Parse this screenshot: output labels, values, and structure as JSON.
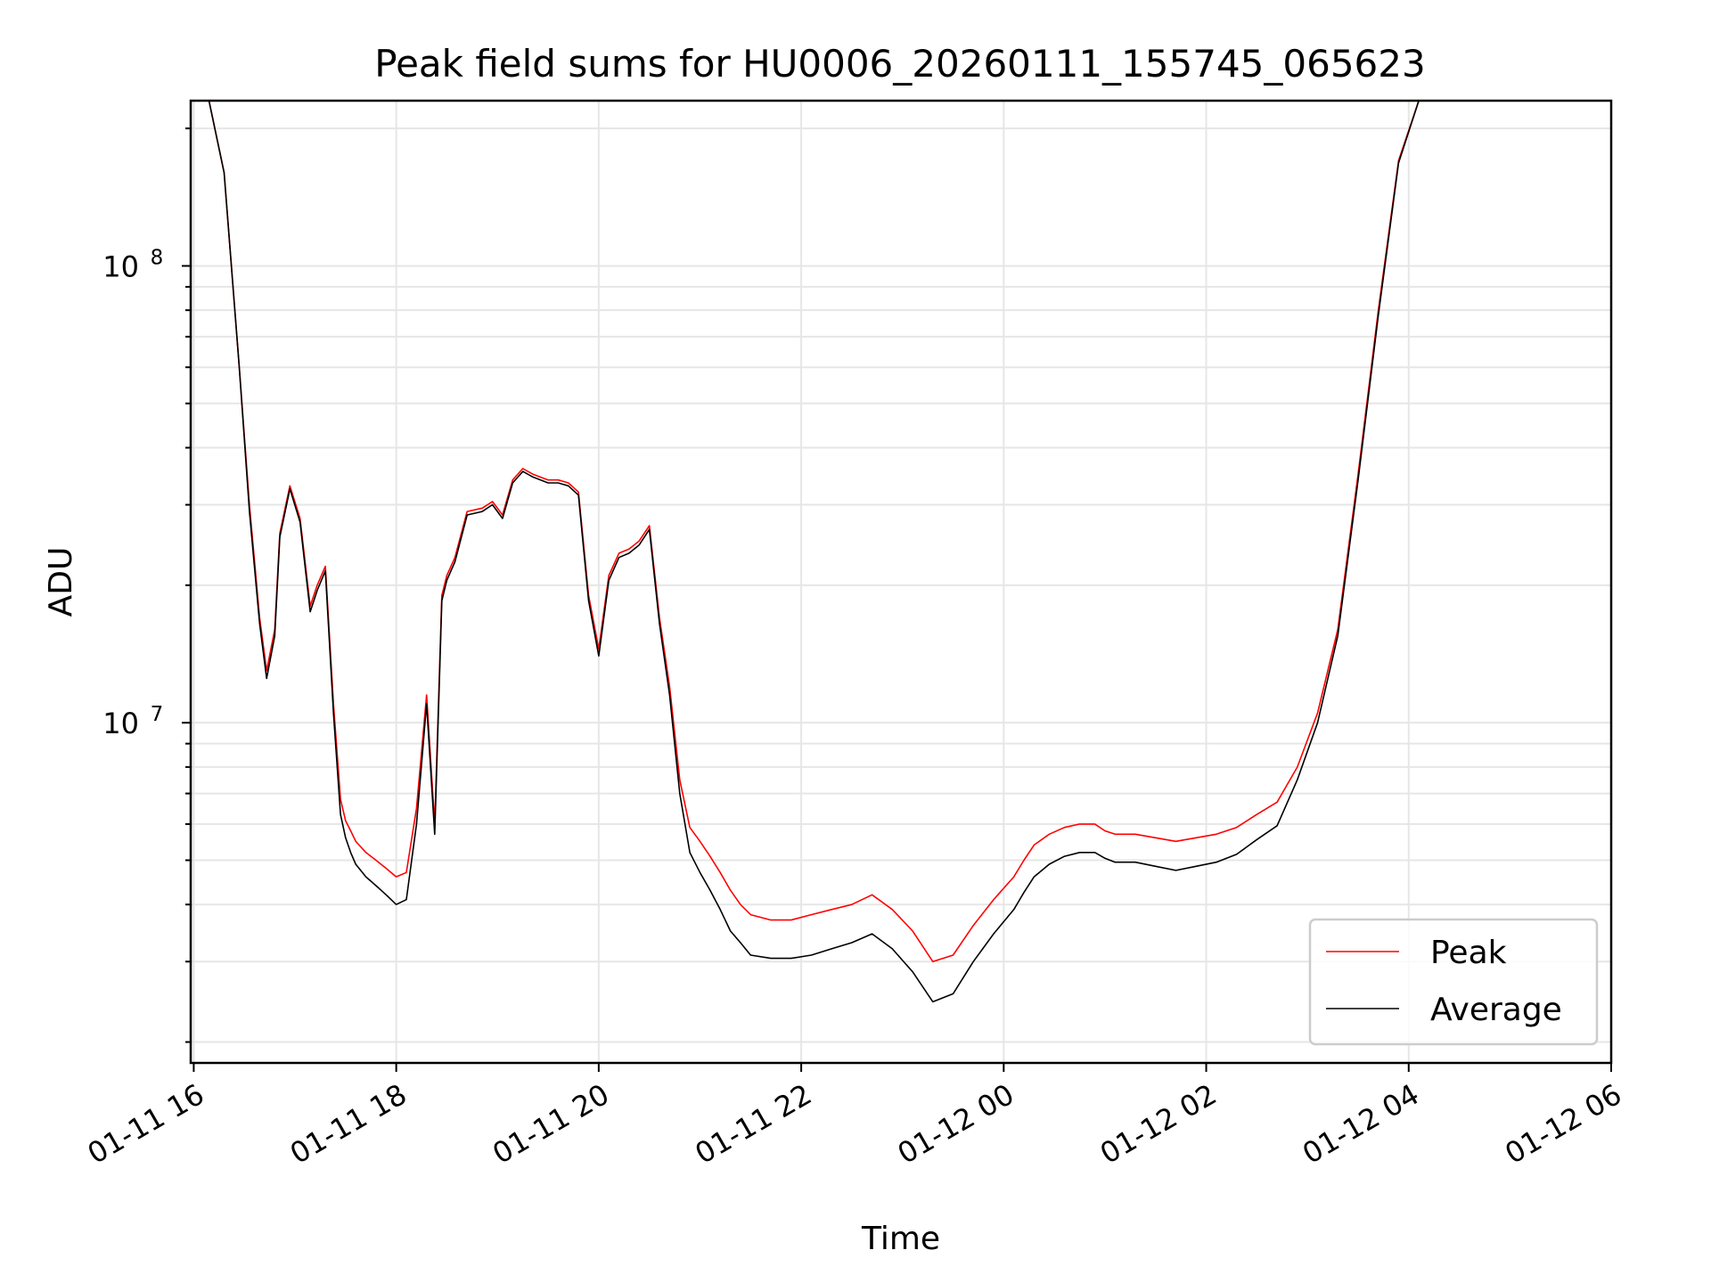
{
  "chart_data": {
    "type": "line",
    "title": "Peak field sums for HU0006_20260111_155745_065623",
    "xlabel": "Time",
    "ylabel": "ADU",
    "yscale": "log",
    "xlim": [
      15.97,
      30.0
    ],
    "ylim": [
      1800000,
      230000000
    ],
    "grid": true,
    "legend_position": "lower-right",
    "x_ticks": [
      {
        "value": 16,
        "label": "01-11 16"
      },
      {
        "value": 18,
        "label": "01-11 18"
      },
      {
        "value": 20,
        "label": "01-11 20"
      },
      {
        "value": 22,
        "label": "01-11 22"
      },
      {
        "value": 24,
        "label": "01-12 00"
      },
      {
        "value": 26,
        "label": "01-12 02"
      },
      {
        "value": 28,
        "label": "01-12 04"
      },
      {
        "value": 30,
        "label": "01-12 06"
      }
    ],
    "y_ticks": [
      {
        "value": 10000000,
        "base": "10",
        "exp": "7"
      },
      {
        "value": 100000000,
        "base": "10",
        "exp": "8"
      }
    ],
    "series": [
      {
        "name": "Peak",
        "color": "#ff0000",
        "x": [
          16.15,
          16.3,
          16.45,
          16.55,
          16.65,
          16.72,
          16.8,
          16.85,
          16.95,
          17.05,
          17.15,
          17.22,
          17.3,
          17.38,
          17.45,
          17.5,
          17.55,
          17.6,
          17.7,
          17.8,
          17.9,
          18.0,
          18.1,
          18.2,
          18.3,
          18.38,
          18.45,
          18.5,
          18.58,
          18.7,
          18.85,
          18.95,
          19.05,
          19.15,
          19.25,
          19.35,
          19.5,
          19.6,
          19.7,
          19.8,
          19.9,
          20.0,
          20.1,
          20.2,
          20.3,
          20.4,
          20.5,
          20.6,
          20.7,
          20.8,
          20.9,
          21.0,
          21.1,
          21.2,
          21.3,
          21.4,
          21.5,
          21.7,
          21.9,
          22.1,
          22.3,
          22.5,
          22.7,
          22.9,
          23.1,
          23.3,
          23.5,
          23.7,
          23.9,
          24.1,
          24.2,
          24.3,
          24.45,
          24.6,
          24.75,
          24.9,
          25.0,
          25.1,
          25.3,
          25.5,
          25.7,
          25.9,
          26.1,
          26.3,
          26.5,
          26.7,
          26.9,
          27.1,
          27.3,
          27.5,
          27.7,
          27.9,
          28.1,
          28.3,
          28.5,
          28.7,
          28.9,
          29.0,
          29.1,
          29.2,
          29.3,
          29.4,
          29.5,
          29.6,
          29.7,
          29.83
        ],
        "y": [
          230000000,
          160000000,
          60000000,
          30000000,
          17000000,
          13000000,
          16000000,
          26000000,
          33000000,
          28000000,
          18000000,
          20000000,
          22000000,
          11000000,
          6800000,
          6100000,
          5800000,
          5500000,
          5200000,
          5000000,
          4800000,
          4600000,
          4700000,
          6500000,
          11500000,
          6000000,
          19000000,
          21000000,
          23000000,
          29000000,
          29500000,
          30500000,
          28500000,
          34000000,
          36000000,
          35000000,
          34000000,
          34000000,
          33500000,
          32000000,
          19000000,
          14500000,
          21000000,
          23500000,
          24000000,
          25000000,
          27000000,
          17000000,
          12000000,
          7500000,
          5900000,
          5500000,
          5100000,
          4700000,
          4300000,
          4000000,
          3800000,
          3700000,
          3700000,
          3800000,
          3900000,
          4000000,
          4200000,
          3900000,
          3500000,
          3000000,
          3100000,
          3600000,
          4100000,
          4600000,
          5000000,
          5400000,
          5700000,
          5900000,
          6000000,
          6000000,
          5800000,
          5700000,
          5700000,
          5600000,
          5500000,
          5600000,
          5700000,
          5900000,
          6300000,
          6700000,
          8000000,
          10500000,
          16000000,
          35000000,
          80000000,
          170000000,
          230000000,
          230000000,
          230000000,
          230000000,
          230000000,
          230000000,
          230000000,
          230000000,
          230000000,
          230000000,
          230000000,
          230000000,
          230000000,
          230000000
        ]
      },
      {
        "name": "Average",
        "color": "#000000",
        "x": [
          16.15,
          16.3,
          16.45,
          16.55,
          16.65,
          16.72,
          16.8,
          16.85,
          16.95,
          17.05,
          17.15,
          17.22,
          17.3,
          17.38,
          17.45,
          17.5,
          17.55,
          17.6,
          17.7,
          17.8,
          17.9,
          18.0,
          18.1,
          18.2,
          18.3,
          18.38,
          18.45,
          18.5,
          18.58,
          18.7,
          18.85,
          18.95,
          19.05,
          19.15,
          19.25,
          19.35,
          19.5,
          19.6,
          19.7,
          19.8,
          19.9,
          20.0,
          20.1,
          20.2,
          20.3,
          20.4,
          20.5,
          20.6,
          20.7,
          20.8,
          20.9,
          21.0,
          21.1,
          21.2,
          21.3,
          21.4,
          21.5,
          21.7,
          21.9,
          22.1,
          22.3,
          22.5,
          22.7,
          22.9,
          23.1,
          23.3,
          23.5,
          23.7,
          23.9,
          24.1,
          24.2,
          24.3,
          24.45,
          24.6,
          24.75,
          24.9,
          25.0,
          25.1,
          25.3,
          25.5,
          25.7,
          25.9,
          26.1,
          26.3,
          26.5,
          26.7,
          26.9,
          27.1,
          27.3,
          27.5,
          27.7,
          27.9,
          28.1,
          28.3,
          28.5,
          28.7,
          28.9,
          29.0,
          29.1,
          29.2,
          29.3,
          29.4,
          29.5,
          29.6,
          29.7,
          29.83
        ],
        "y": [
          230000000,
          160000000,
          60000000,
          29000000,
          16500000,
          12500000,
          15500000,
          25500000,
          32500000,
          27500000,
          17500000,
          19500000,
          21500000,
          10500000,
          6300000,
          5600000,
          5200000,
          4900000,
          4600000,
          4400000,
          4200000,
          4000000,
          4100000,
          6000000,
          11000000,
          5700000,
          18500000,
          20500000,
          22500000,
          28500000,
          29000000,
          30000000,
          28000000,
          33500000,
          35500000,
          34500000,
          33500000,
          33500000,
          33000000,
          31500000,
          18500000,
          14000000,
          20500000,
          23000000,
          23500000,
          24500000,
          26500000,
          16500000,
          11500000,
          7000000,
          5200000,
          4700000,
          4300000,
          3900000,
          3500000,
          3300000,
          3100000,
          3050000,
          3050000,
          3100000,
          3200000,
          3300000,
          3450000,
          3200000,
          2850000,
          2450000,
          2550000,
          3000000,
          3450000,
          3900000,
          4250000,
          4600000,
          4900000,
          5100000,
          5200000,
          5200000,
          5050000,
          4950000,
          4950000,
          4850000,
          4750000,
          4850000,
          4950000,
          5150000,
          5550000,
          5950000,
          7500000,
          10000000,
          15500000,
          34000000,
          78000000,
          168000000,
          230000000,
          230000000,
          230000000,
          230000000,
          230000000,
          230000000,
          230000000,
          230000000,
          230000000,
          230000000,
          230000000,
          230000000,
          230000000,
          230000000
        ]
      }
    ]
  }
}
